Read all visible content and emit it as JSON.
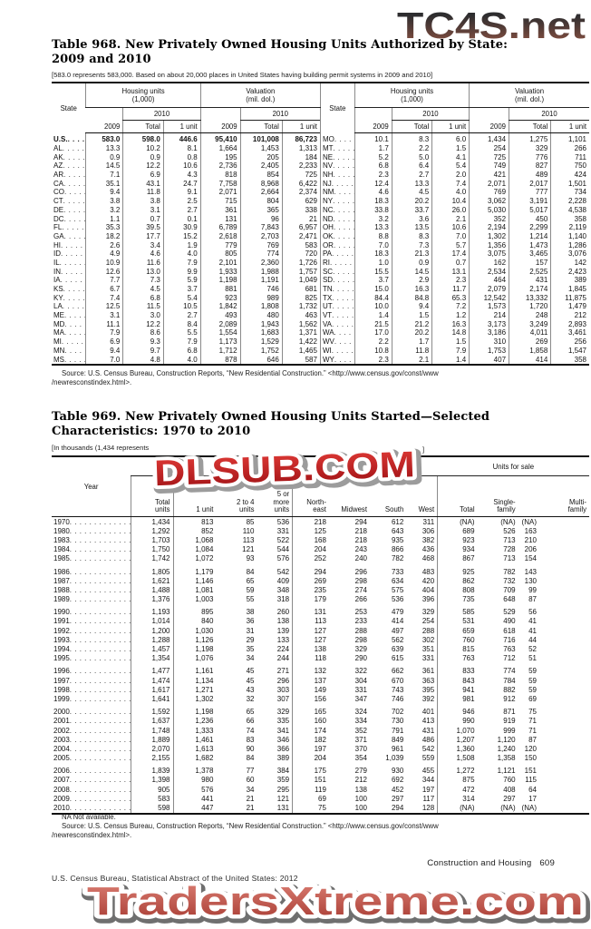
{
  "watermarks": {
    "top": "TC4S.net",
    "middle": "DLSUB.COM",
    "bottom": "TradersXtreme.com"
  },
  "table968": {
    "title_line1": "Table 968. New Privately Owned Housing Units Authorized by State:",
    "title_line2": "2009 and 2010",
    "note": "[583.0 represents 583,000. Based on about 20,000 places in United States having building permit systems in 2009 and 2010]",
    "headers": {
      "state": "State",
      "housing_units": "Housing units\n(1,000)",
      "valuation": "Valuation\n(mil. dol.)",
      "y2009": "2009",
      "y2010": "2010",
      "total": "Total",
      "one_unit": "1 unit"
    },
    "rows": [
      [
        "U.S.",
        "583.0",
        "598.0",
        "446.6",
        "95,410",
        "101,008",
        "86,723",
        "MO",
        "10.1",
        "8.3",
        "6.0",
        "1,434",
        "1,275",
        "1,101"
      ],
      [
        "AL",
        "13.3",
        "10.2",
        "8.1",
        "1,664",
        "1,453",
        "1,313",
        "MT",
        "1.7",
        "2.2",
        "1.5",
        "254",
        "329",
        "266"
      ],
      [
        "AK",
        "0.9",
        "0.9",
        "0.8",
        "195",
        "205",
        "184",
        "NE",
        "5.2",
        "5.0",
        "4.1",
        "725",
        "776",
        "711"
      ],
      [
        "AZ",
        "14.5",
        "12.2",
        "10.6",
        "2,736",
        "2,405",
        "2,233",
        "NV",
        "6.8",
        "6.4",
        "5.4",
        "749",
        "827",
        "750"
      ],
      [
        "AR",
        "7.1",
        "6.9",
        "4.3",
        "818",
        "854",
        "725",
        "NH",
        "2.3",
        "2.7",
        "2.0",
        "421",
        "489",
        "424"
      ],
      [
        "CA",
        "35.1",
        "43.1",
        "24.7",
        "7,758",
        "8,968",
        "6,422",
        "NJ",
        "12.4",
        "13.3",
        "7.4",
        "2,071",
        "2,017",
        "1,501"
      ],
      [
        "CO",
        "9.4",
        "11.8",
        "9.1",
        "2,071",
        "2,664",
        "2,374",
        "NM",
        "4.6",
        "4.5",
        "4.0",
        "769",
        "777",
        "734"
      ],
      [
        "CT",
        "3.8",
        "3.8",
        "2.5",
        "715",
        "804",
        "629",
        "NY",
        "18.3",
        "20.2",
        "10.4",
        "3,062",
        "3,191",
        "2,228"
      ],
      [
        "DE",
        "3.2",
        "3.1",
        "2.7",
        "361",
        "365",
        "338",
        "NC",
        "33.8",
        "33.7",
        "26.0",
        "5,030",
        "5,017",
        "4,538"
      ],
      [
        "DC",
        "1.1",
        "0.7",
        "0.1",
        "131",
        "96",
        "21",
        "ND",
        "3.2",
        "3.6",
        "2.1",
        "352",
        "450",
        "358"
      ],
      [
        "FL",
        "35.3",
        "39.5",
        "30.9",
        "6,789",
        "7,843",
        "6,957",
        "OH",
        "13.3",
        "13.5",
        "10.6",
        "2,194",
        "2,299",
        "2,119"
      ],
      [
        "GA",
        "18.2",
        "17.7",
        "15.2",
        "2,618",
        "2,703",
        "2,471",
        "OK",
        "8.8",
        "8.3",
        "7.0",
        "1,302",
        "1,214",
        "1,140"
      ],
      [
        "HI",
        "2.6",
        "3.4",
        "1.9",
        "779",
        "769",
        "583",
        "OR",
        "7.0",
        "7.3",
        "5.7",
        "1,356",
        "1,473",
        "1,286"
      ],
      [
        "ID",
        "4.9",
        "4.6",
        "4.0",
        "805",
        "774",
        "720",
        "PA",
        "18.3",
        "21.3",
        "17.4",
        "3,075",
        "3,465",
        "3,076"
      ],
      [
        "IL",
        "10.9",
        "11.6",
        "7.9",
        "2,101",
        "2,360",
        "1,726",
        "RI",
        "1.0",
        "0.9",
        "0.7",
        "162",
        "157",
        "142"
      ],
      [
        "IN",
        "12.6",
        "13.0",
        "9.9",
        "1,933",
        "1,988",
        "1,757",
        "SC",
        "15.5",
        "14.5",
        "13.1",
        "2,534",
        "2,525",
        "2,423"
      ],
      [
        "IA",
        "7.7",
        "7.3",
        "5.9",
        "1,198",
        "1,191",
        "1,049",
        "SD",
        "3.7",
        "2.9",
        "2.3",
        "464",
        "431",
        "389"
      ],
      [
        "KS",
        "6.7",
        "4.5",
        "3.7",
        "881",
        "746",
        "681",
        "TN",
        "15.0",
        "16.3",
        "11.7",
        "2,079",
        "2,174",
        "1,845"
      ],
      [
        "KY",
        "7.4",
        "6.8",
        "5.4",
        "923",
        "989",
        "825",
        "TX",
        "84.4",
        "84.8",
        "65.3",
        "12,542",
        "13,332",
        "11,875"
      ],
      [
        "LA",
        "12.5",
        "11.5",
        "10.5",
        "1,842",
        "1,808",
        "1,732",
        "UT",
        "10.0",
        "9.4",
        "7.2",
        "1,573",
        "1,720",
        "1,479"
      ],
      [
        "ME",
        "3.1",
        "3.0",
        "2.7",
        "493",
        "480",
        "463",
        "VT",
        "1.4",
        "1.5",
        "1.2",
        "214",
        "248",
        "212"
      ],
      [
        "MD",
        "11.1",
        "12.2",
        "8.4",
        "2,089",
        "1,943",
        "1,562",
        "VA",
        "21.5",
        "21.2",
        "16.3",
        "3,173",
        "3,249",
        "2,893"
      ],
      [
        "MA",
        "7.9",
        "8.6",
        "5.5",
        "1,554",
        "1,683",
        "1,371",
        "WA",
        "17.0",
        "20.2",
        "14.8",
        "3,186",
        "4,011",
        "3,461"
      ],
      [
        "MI",
        "6.9",
        "9.3",
        "7.9",
        "1,173",
        "1,529",
        "1,422",
        "WV",
        "2.2",
        "1.7",
        "1.5",
        "310",
        "269",
        "256"
      ],
      [
        "MN",
        "9.4",
        "9.7",
        "6.8",
        "1,712",
        "1,752",
        "1,465",
        "WI",
        "10.8",
        "11.8",
        "7.9",
        "1,753",
        "1,858",
        "1,547"
      ],
      [
        "MS",
        "7.0",
        "4.8",
        "4.0",
        "878",
        "646",
        "587",
        "WY",
        "2.3",
        "2.1",
        "1.4",
        "407",
        "414",
        "358"
      ]
    ],
    "source_line1": "Source: U.S. Census Bureau, Construction Reports, “New Residential Construction.” <http://www.census.gov/const/www",
    "source_line2": "/newresconstindex.html>."
  },
  "table969": {
    "title_line1": "Table 969. New Privately Owned Housing Units Started—Selected",
    "title_line2": "Characteristics: 1970 to 2010",
    "note_left": "[In thousands (1,434 represents",
    "note_end": "]",
    "headers": {
      "year": "Year",
      "units_for_sale": "Units for sale"
    },
    "col_headers": [
      "Total\nunits",
      "1 unit",
      "2 to 4\nunits",
      "5 or\nmore\nunits",
      "North-\neast",
      "Midwest",
      "South",
      "West",
      "Total",
      "Single-\nfamily",
      "Multi-\nfamily"
    ],
    "groups": [
      [
        [
          "1970",
          "1,434",
          "813",
          "85",
          "536",
          "218",
          "294",
          "612",
          "311",
          "(NA)",
          "(NA)",
          "(NA)"
        ],
        [
          "1980",
          "1,292",
          "852",
          "110",
          "331",
          "125",
          "218",
          "643",
          "306",
          "689",
          "526",
          "163"
        ],
        [
          "1983",
          "1,703",
          "1,068",
          "113",
          "522",
          "168",
          "218",
          "935",
          "382",
          "923",
          "713",
          "210"
        ],
        [
          "1984",
          "1,750",
          "1,084",
          "121",
          "544",
          "204",
          "243",
          "866",
          "436",
          "934",
          "728",
          "206"
        ],
        [
          "1985",
          "1,742",
          "1,072",
          "93",
          "576",
          "252",
          "240",
          "782",
          "468",
          "867",
          "713",
          "154"
        ]
      ],
      [
        [
          "1986",
          "1,805",
          "1,179",
          "84",
          "542",
          "294",
          "296",
          "733",
          "483",
          "925",
          "782",
          "143"
        ],
        [
          "1987",
          "1,621",
          "1,146",
          "65",
          "409",
          "269",
          "298",
          "634",
          "420",
          "862",
          "732",
          "130"
        ],
        [
          "1988",
          "1,488",
          "1,081",
          "59",
          "348",
          "235",
          "274",
          "575",
          "404",
          "808",
          "709",
          "99"
        ],
        [
          "1989",
          "1,376",
          "1,003",
          "55",
          "318",
          "179",
          "266",
          "536",
          "396",
          "735",
          "648",
          "87"
        ]
      ],
      [
        [
          "1990",
          "1,193",
          "895",
          "38",
          "260",
          "131",
          "253",
          "479",
          "329",
          "585",
          "529",
          "56"
        ],
        [
          "1991",
          "1,014",
          "840",
          "36",
          "138",
          "113",
          "233",
          "414",
          "254",
          "531",
          "490",
          "41"
        ],
        [
          "1992",
          "1,200",
          "1,030",
          "31",
          "139",
          "127",
          "288",
          "497",
          "288",
          "659",
          "618",
          "41"
        ],
        [
          "1993",
          "1,288",
          "1,126",
          "29",
          "133",
          "127",
          "298",
          "562",
          "302",
          "760",
          "716",
          "44"
        ],
        [
          "1994",
          "1,457",
          "1,198",
          "35",
          "224",
          "138",
          "329",
          "639",
          "351",
          "815",
          "763",
          "52"
        ],
        [
          "1995",
          "1,354",
          "1,076",
          "34",
          "244",
          "118",
          "290",
          "615",
          "331",
          "763",
          "712",
          "51"
        ]
      ],
      [
        [
          "1996",
          "1,477",
          "1,161",
          "45",
          "271",
          "132",
          "322",
          "662",
          "361",
          "833",
          "774",
          "59"
        ],
        [
          "1997",
          "1,474",
          "1,134",
          "45",
          "296",
          "137",
          "304",
          "670",
          "363",
          "843",
          "784",
          "59"
        ],
        [
          "1998",
          "1,617",
          "1,271",
          "43",
          "303",
          "149",
          "331",
          "743",
          "395",
          "941",
          "882",
          "59"
        ],
        [
          "1999",
          "1,641",
          "1,302",
          "32",
          "307",
          "156",
          "347",
          "746",
          "392",
          "981",
          "912",
          "69"
        ]
      ],
      [
        [
          "2000",
          "1,592",
          "1,198",
          "65",
          "329",
          "165",
          "324",
          "702",
          "401",
          "946",
          "871",
          "75"
        ],
        [
          "2001",
          "1,637",
          "1,236",
          "66",
          "335",
          "160",
          "334",
          "730",
          "413",
          "990",
          "919",
          "71"
        ],
        [
          "2002",
          "1,748",
          "1,333",
          "74",
          "341",
          "174",
          "352",
          "791",
          "431",
          "1,070",
          "999",
          "71"
        ],
        [
          "2003",
          "1,889",
          "1,461",
          "83",
          "346",
          "182",
          "371",
          "849",
          "486",
          "1,207",
          "1,120",
          "87"
        ],
        [
          "2004",
          "2,070",
          "1,613",
          "90",
          "366",
          "197",
          "370",
          "961",
          "542",
          "1,360",
          "1,240",
          "120"
        ],
        [
          "2005",
          "2,155",
          "1,682",
          "84",
          "389",
          "204",
          "354",
          "1,039",
          "559",
          "1,508",
          "1,358",
          "150"
        ]
      ],
      [
        [
          "2006",
          "1,839",
          "1,378",
          "77",
          "384",
          "175",
          "279",
          "930",
          "455",
          "1,272",
          "1,121",
          "151"
        ],
        [
          "2007",
          "1,398",
          "980",
          "60",
          "359",
          "151",
          "212",
          "692",
          "344",
          "875",
          "760",
          "115"
        ],
        [
          "2008",
          "905",
          "576",
          "34",
          "295",
          "119",
          "138",
          "452",
          "197",
          "472",
          "408",
          "64"
        ],
        [
          "2009",
          "583",
          "441",
          "21",
          "121",
          "69",
          "100",
          "297",
          "117",
          "314",
          "297",
          "17"
        ],
        [
          "2010",
          "598",
          "447",
          "21",
          "131",
          "75",
          "100",
          "294",
          "128",
          "(NA)",
          "(NA)",
          "(NA)"
        ]
      ]
    ],
    "footnote": "NA Not available.",
    "source_line1": "Source: U.S. Census Bureau, Construction Reports, “New Residential Construction.” <http://www.census.gov/const/www",
    "source_line2": "/newresconstindex.html>."
  },
  "footer": {
    "section_label": "Construction and Housing",
    "page_number": "609",
    "census_line": "U.S. Census Bureau, Statistical Abstract of the United States: 2012"
  }
}
